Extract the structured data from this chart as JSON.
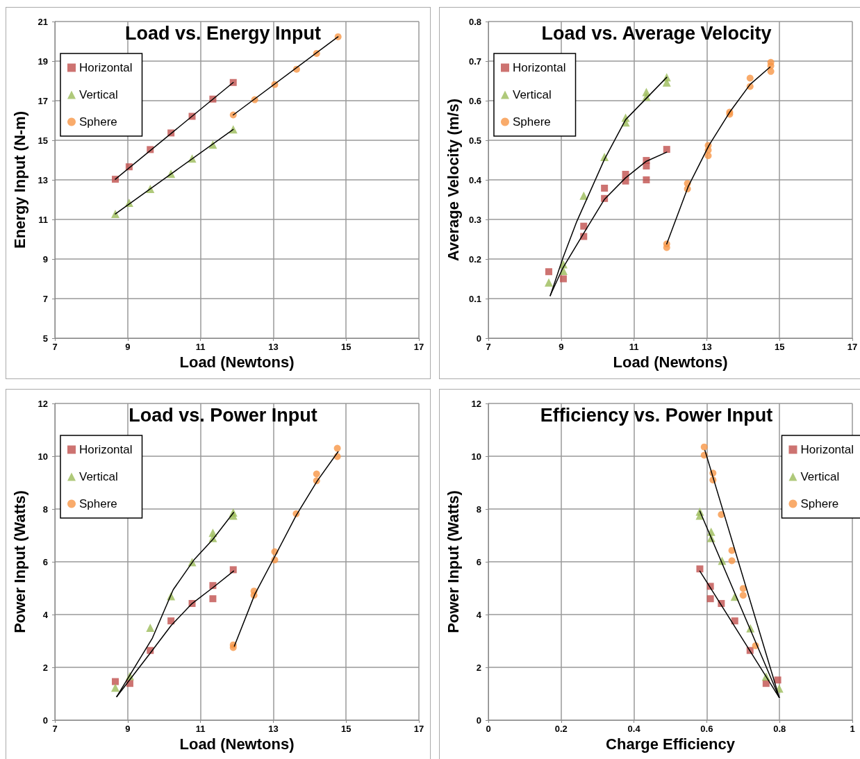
{
  "chart_data": [
    {
      "type": "scatter",
      "title": "Load vs. Energy Input",
      "xlabel": "Load (Newtons)",
      "ylabel": "Energy Input (N-m)",
      "xlim": [
        7,
        17
      ],
      "xticks": [
        7,
        9,
        11,
        13,
        15,
        17
      ],
      "ylim": [
        5,
        21
      ],
      "yticks": [
        5,
        7,
        9,
        11,
        13,
        15,
        17,
        19,
        21
      ],
      "grid": true,
      "legend": "top left",
      "series": [
        {
          "name": "Horizontal",
          "color": "#c0504d",
          "marker": "square",
          "x": [
            8.66,
            9.04,
            9.62,
            10.19,
            10.77,
            11.34,
            11.9
          ],
          "values": [
            13.03,
            13.66,
            14.53,
            15.37,
            16.21,
            17.08,
            17.92
          ]
        },
        {
          "name": "Vertical",
          "color": "#9bbb59",
          "marker": "triangle",
          "x": [
            8.66,
            9.04,
            9.62,
            10.19,
            10.77,
            11.34,
            11.9
          ],
          "values": [
            11.28,
            11.84,
            12.54,
            13.31,
            14.08,
            14.78,
            15.55
          ]
        },
        {
          "name": "Sphere",
          "color": "#f79646",
          "marker": "circle",
          "x": [
            11.9,
            12.49,
            13.04,
            13.64,
            14.19,
            14.78
          ],
          "values": [
            16.28,
            17.05,
            17.82,
            18.59,
            19.39,
            20.23
          ]
        },
        {
          "type": "line",
          "color": "#000000",
          "marker": "none",
          "line_style": "solid",
          "x": [
            8.66,
            11.9
          ],
          "values": [
            13.03,
            17.92
          ]
        },
        {
          "type": "line",
          "color": "#000000",
          "marker": "none",
          "line_style": "solid",
          "x": [
            8.66,
            11.9
          ],
          "values": [
            11.28,
            15.55
          ]
        },
        {
          "type": "line",
          "color": "#000000",
          "marker": "none",
          "line_style": "solid",
          "x": [
            11.9,
            14.78
          ],
          "values": [
            16.28,
            20.23
          ]
        }
      ]
    },
    {
      "type": "scatter",
      "title": "Load vs. Average Velocity",
      "xlabel": "Load (Newtons)",
      "ylabel": "Average Velocity (m/s)",
      "xlim": [
        7,
        17
      ],
      "xticks": [
        7,
        9,
        11,
        13,
        15,
        17
      ],
      "ylim": [
        0,
        0.8
      ],
      "yticks": [
        0,
        0.1,
        0.2,
        0.3,
        0.4,
        0.5,
        0.6,
        0.7,
        0.8
      ],
      "grid": true,
      "legend": "top left",
      "series": [
        {
          "name": "Horizontal",
          "color": "#c0504d",
          "marker": "square",
          "x": [
            8.66,
            9.06,
            9.62,
            9.62,
            10.19,
            10.19,
            10.77,
            10.77,
            11.34,
            11.34,
            11.34,
            11.9
          ],
          "values": [
            0.168,
            0.15,
            0.283,
            0.257,
            0.379,
            0.353,
            0.414,
            0.397,
            0.449,
            0.435,
            0.4,
            0.477
          ]
        },
        {
          "name": "Vertical",
          "color": "#9bbb59",
          "marker": "triangle",
          "x": [
            8.66,
            9.06,
            9.06,
            9.62,
            10.19,
            10.77,
            10.77,
            11.34,
            11.34,
            11.9,
            11.9
          ],
          "values": [
            0.141,
            0.187,
            0.17,
            0.36,
            0.458,
            0.557,
            0.545,
            0.622,
            0.61,
            0.659,
            0.646
          ]
        },
        {
          "name": "Sphere",
          "color": "#f79646",
          "marker": "circle",
          "x": [
            11.9,
            11.9,
            12.47,
            12.47,
            13.04,
            13.04,
            13.04,
            13.63,
            13.63,
            14.19,
            14.19,
            14.76,
            14.76,
            14.76
          ],
          "values": [
            0.238,
            0.229,
            0.391,
            0.377,
            0.487,
            0.475,
            0.461,
            0.571,
            0.566,
            0.657,
            0.636,
            0.697,
            0.688,
            0.674
          ]
        },
        {
          "type": "line",
          "color": "#000000",
          "marker": "none",
          "line_style": "solid",
          "x": [
            8.7,
            9.05,
            9.62,
            10.19,
            10.77,
            11.34,
            11.9
          ],
          "values": [
            0.108,
            0.178,
            0.265,
            0.351,
            0.405,
            0.447,
            0.47
          ]
        },
        {
          "type": "line",
          "color": "#000000",
          "marker": "none",
          "line_style": "solid",
          "x": [
            8.7,
            9.05,
            9.43,
            10.19,
            10.77,
            11.9
          ],
          "values": [
            0.107,
            0.203,
            0.295,
            0.452,
            0.552,
            0.659
          ]
        },
        {
          "type": "line",
          "color": "#000000",
          "marker": "none",
          "line_style": "solid",
          "x": [
            11.9,
            12.49,
            13.06,
            13.63,
            14.19,
            14.74
          ],
          "values": [
            0.238,
            0.383,
            0.487,
            0.571,
            0.641,
            0.685
          ]
        }
      ]
    },
    {
      "type": "scatter",
      "title": "Load vs. Power Input",
      "xlabel": "Load (Newtons)",
      "ylabel": "Power Input (Watts)",
      "xlim": [
        7,
        17
      ],
      "xticks": [
        7,
        9,
        11,
        13,
        15,
        17
      ],
      "ylim": [
        0,
        12
      ],
      "yticks": [
        0,
        2,
        4,
        6,
        8,
        10,
        12
      ],
      "grid": true,
      "legend": "top left",
      "series": [
        {
          "name": "Horizontal",
          "color": "#c0504d",
          "marker": "square",
          "x": [
            8.66,
            9.06,
            9.62,
            10.19,
            10.77,
            11.34,
            11.34,
            11.9
          ],
          "values": [
            1.46,
            1.39,
            2.64,
            3.76,
            4.42,
            5.1,
            4.6,
            5.7
          ]
        },
        {
          "name": "Vertical",
          "color": "#9bbb59",
          "marker": "triangle",
          "x": [
            8.66,
            9.06,
            9.62,
            10.19,
            10.77,
            11.34,
            11.34,
            11.9,
            11.9
          ],
          "values": [
            1.23,
            1.67,
            3.5,
            4.7,
            5.99,
            7.1,
            6.9,
            7.87,
            7.75
          ]
        },
        {
          "name": "Sphere",
          "color": "#f79646",
          "marker": "circle",
          "x": [
            11.9,
            11.9,
            12.47,
            12.47,
            13.04,
            13.04,
            13.63,
            14.19,
            14.19,
            14.76,
            14.76
          ],
          "values": [
            2.85,
            2.75,
            4.89,
            4.73,
            6.38,
            6.07,
            7.82,
            9.33,
            9.07,
            10.3,
            9.99
          ]
        },
        {
          "type": "line",
          "color": "#000000",
          "marker": "none",
          "line_style": "solid",
          "x": [
            8.7,
            9.62,
            10.19,
            10.77,
            11.34,
            11.91
          ],
          "values": [
            0.89,
            2.54,
            3.58,
            4.42,
            5.02,
            5.65
          ]
        },
        {
          "type": "line",
          "color": "#000000",
          "marker": "none",
          "line_style": "solid",
          "x": [
            8.7,
            9.68,
            10.25,
            10.82,
            11.34,
            11.91
          ],
          "values": [
            0.89,
            3.11,
            4.94,
            6.07,
            6.85,
            7.87
          ]
        },
        {
          "type": "line",
          "color": "#000000",
          "marker": "none",
          "line_style": "solid",
          "x": [
            11.93,
            12.49,
            13.06,
            13.63,
            14.21,
            14.78
          ],
          "values": [
            2.8,
            4.76,
            6.25,
            7.76,
            9.07,
            10.17
          ]
        }
      ]
    },
    {
      "type": "scatter",
      "title": "Efficiency vs. Power Input",
      "xlabel": "Charge Efficiency",
      "ylabel": "Power Input (Watts)",
      "xlim": [
        0,
        1
      ],
      "xticks": [
        0,
        0.2,
        0.4,
        0.6,
        0.8,
        1
      ],
      "ylim": [
        0,
        12
      ],
      "yticks": [
        0,
        2,
        4,
        6,
        8,
        10,
        12
      ],
      "grid": true,
      "legend": "top right",
      "series": [
        {
          "name": "Horizontal",
          "color": "#c0504d",
          "marker": "square",
          "x": [
            0.581,
            0.61,
            0.61,
            0.64,
            0.677,
            0.719,
            0.763,
            0.795
          ],
          "values": [
            5.73,
            5.07,
            4.6,
            4.42,
            3.76,
            2.64,
            1.39,
            1.52
          ]
        },
        {
          "name": "Vertical",
          "color": "#9bbb59",
          "marker": "triangle",
          "x": [
            0.581,
            0.581,
            0.612,
            0.612,
            0.642,
            0.677,
            0.72,
            0.763,
            0.799
          ],
          "values": [
            7.9,
            7.75,
            7.14,
            6.9,
            6.04,
            4.68,
            3.48,
            1.65,
            1.2
          ]
        },
        {
          "name": "Sphere",
          "color": "#f79646",
          "marker": "circle",
          "x": [
            0.593,
            0.593,
            0.617,
            0.617,
            0.64,
            0.669,
            0.669,
            0.7,
            0.7,
            0.734
          ],
          "values": [
            10.35,
            10.04,
            9.36,
            9.1,
            7.79,
            6.43,
            6.04,
            4.99,
            4.73,
            2.82
          ]
        },
        {
          "type": "line",
          "color": "#000000",
          "marker": "none",
          "line_style": "solid",
          "x": [
            0.581,
            0.799
          ],
          "values": [
            5.65,
            0.86
          ]
        },
        {
          "type": "line",
          "color": "#000000",
          "marker": "none",
          "line_style": "solid",
          "x": [
            0.581,
            0.799
          ],
          "values": [
            7.92,
            0.86
          ]
        },
        {
          "type": "line",
          "color": "#000000",
          "marker": "none",
          "line_style": "solid",
          "x": [
            0.595,
            0.799
          ],
          "values": [
            10.22,
            0.86
          ]
        }
      ]
    }
  ]
}
